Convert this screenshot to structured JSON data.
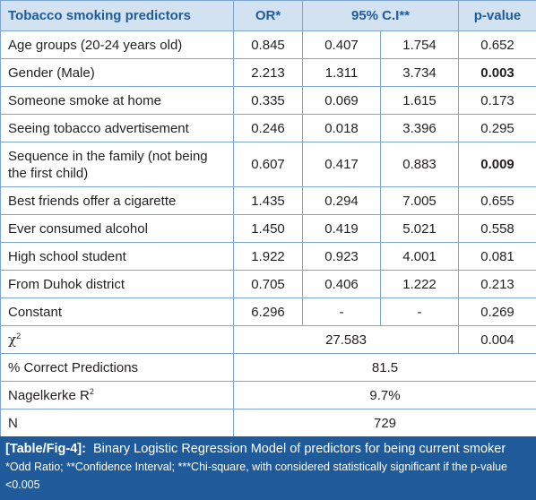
{
  "header": {
    "predictors": "Tobacco smoking predictors",
    "or": "OR*",
    "ci": "95% C.I**",
    "p": "p-value"
  },
  "rows": [
    {
      "label": "Age groups (20-24 years old)",
      "or": "0.845",
      "lo": "0.407",
      "hi": "1.754",
      "p": "0.652",
      "bold_p": false
    },
    {
      "label": "Gender (Male)",
      "or": "2.213",
      "lo": "1.311",
      "hi": "3.734",
      "p": "0.003",
      "bold_p": true
    },
    {
      "label": "Someone smoke at home",
      "or": "0.335",
      "lo": "0.069",
      "hi": "1.615",
      "p": "0.173",
      "bold_p": false
    },
    {
      "label": "Seeing tobacco advertisement",
      "or": "0.246",
      "lo": "0.018",
      "hi": "3.396",
      "p": "0.295",
      "bold_p": false
    },
    {
      "label": "Sequence in the family (not being the first child)",
      "or": "0.607",
      "lo": "0.417",
      "hi": "0.883",
      "p": "0.009",
      "bold_p": true
    },
    {
      "label": "Best friends offer a cigarette",
      "or": "1.435",
      "lo": "0.294",
      "hi": "7.005",
      "p": "0.655",
      "bold_p": false
    },
    {
      "label": "Ever consumed alcohol",
      "or": "1.450",
      "lo": "0.419",
      "hi": "5.021",
      "p": "0.558",
      "bold_p": false
    },
    {
      "label": "High school student",
      "or": "1.922",
      "lo": "0.923",
      "hi": "4.001",
      "p": "0.081",
      "bold_p": false
    },
    {
      "label": "From Duhok district",
      "or": "0.705",
      "lo": "0.406",
      "hi": "1.222",
      "p": "0.213",
      "bold_p": false
    },
    {
      "label": "Constant",
      "or": "6.296",
      "lo": "-",
      "hi": "-",
      "p": "0.269",
      "bold_p": false
    }
  ],
  "chi": {
    "symbol": "χ",
    "sup": "2",
    "value": "27.583",
    "p": "0.004"
  },
  "correct": {
    "label": "% Correct Predictions",
    "value": "81.5"
  },
  "nagelkerke": {
    "label": "Nagelkerke R",
    "sup": "2",
    "value": "9.7%"
  },
  "n": {
    "label": "N",
    "value": "729"
  },
  "caption": {
    "tag": "[Table/Fig-4]:",
    "title": "Binary Logistic Regression Model of predictors for being current smoker",
    "note": "*Odd Ratio; **Confidence Interval; ***Chi-square, with considered statistically significant if the p-value <0.005"
  },
  "colors": {
    "header_bg": "#d3e2f1",
    "header_text": "#1f5b9b",
    "border": "#7ea5cf",
    "caption_bg": "#1f5b9b"
  }
}
